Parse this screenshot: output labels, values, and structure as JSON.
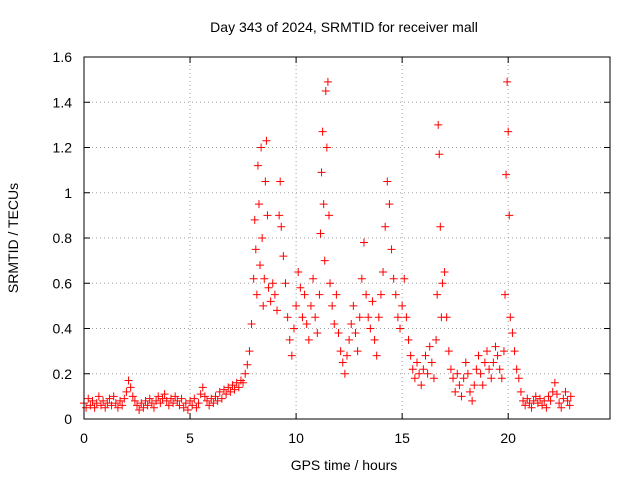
{
  "chart_data": {
    "type": "scatter",
    "title": "Day 343 of 2024, SRMTID for receiver mall",
    "xlabel": "GPS time / hours",
    "ylabel": "SRMTID / TECUs",
    "xlim": [
      0,
      24.8
    ],
    "ylim": [
      0,
      1.6
    ],
    "x_ticks": [
      0,
      5,
      10,
      15,
      20
    ],
    "y_ticks": [
      0,
      0.2,
      0.4,
      0.6,
      0.8,
      1,
      1.2,
      1.4,
      1.6
    ],
    "x_tick_labels": [
      "0",
      "5",
      "10",
      "15",
      "20"
    ],
    "y_tick_labels": [
      "0",
      "0.2",
      "0.4",
      "0.6",
      "0.8",
      "1",
      "1.2",
      "1.4",
      "1.6"
    ],
    "grid": true,
    "marker": "plus",
    "color": "#ff0000",
    "series": [
      {
        "name": "SRMTID",
        "points": [
          [
            0.0,
            0.07
          ],
          [
            0.1,
            0.05
          ],
          [
            0.2,
            0.09
          ],
          [
            0.3,
            0.06
          ],
          [
            0.4,
            0.08
          ],
          [
            0.5,
            0.05
          ],
          [
            0.6,
            0.07
          ],
          [
            0.7,
            0.1
          ],
          [
            0.8,
            0.06
          ],
          [
            0.9,
            0.08
          ],
          [
            1.0,
            0.05
          ],
          [
            1.1,
            0.07
          ],
          [
            1.2,
            0.09
          ],
          [
            1.3,
            0.06
          ],
          [
            1.4,
            0.1
          ],
          [
            1.5,
            0.07
          ],
          [
            1.6,
            0.05
          ],
          [
            1.7,
            0.08
          ],
          [
            1.8,
            0.06
          ],
          [
            1.9,
            0.09
          ],
          [
            2.0,
            0.12
          ],
          [
            2.1,
            0.17
          ],
          [
            2.2,
            0.14
          ],
          [
            2.3,
            0.1
          ],
          [
            2.4,
            0.08
          ],
          [
            2.5,
            0.06
          ],
          [
            2.6,
            0.04
          ],
          [
            2.7,
            0.07
          ],
          [
            2.8,
            0.05
          ],
          [
            2.9,
            0.08
          ],
          [
            3.0,
            0.06
          ],
          [
            3.1,
            0.09
          ],
          [
            3.2,
            0.07
          ],
          [
            3.3,
            0.05
          ],
          [
            3.4,
            0.08
          ],
          [
            3.5,
            0.1
          ],
          [
            3.6,
            0.07
          ],
          [
            3.7,
            0.09
          ],
          [
            3.8,
            0.11
          ],
          [
            3.9,
            0.08
          ],
          [
            4.0,
            0.06
          ],
          [
            4.1,
            0.09
          ],
          [
            4.2,
            0.07
          ],
          [
            4.3,
            0.1
          ],
          [
            4.4,
            0.08
          ],
          [
            4.5,
            0.06
          ],
          [
            4.6,
            0.09
          ],
          [
            4.7,
            0.05
          ],
          [
            4.8,
            0.07
          ],
          [
            4.9,
            0.04
          ],
          [
            5.0,
            0.08
          ],
          [
            5.1,
            0.06
          ],
          [
            5.2,
            0.09
          ],
          [
            5.3,
            0.05
          ],
          [
            5.4,
            0.07
          ],
          [
            5.5,
            0.11
          ],
          [
            5.6,
            0.14
          ],
          [
            5.7,
            0.1
          ],
          [
            5.8,
            0.08
          ],
          [
            5.9,
            0.06
          ],
          [
            6.0,
            0.09
          ],
          [
            6.1,
            0.07
          ],
          [
            6.2,
            0.1
          ],
          [
            6.3,
            0.08
          ],
          [
            6.4,
            0.12
          ],
          [
            6.5,
            0.09
          ],
          [
            6.6,
            0.13
          ],
          [
            6.7,
            0.11
          ],
          [
            6.8,
            0.14
          ],
          [
            6.9,
            0.12
          ],
          [
            7.0,
            0.15
          ],
          [
            7.1,
            0.13
          ],
          [
            7.2,
            0.16
          ],
          [
            7.3,
            0.14
          ],
          [
            7.4,
            0.17
          ],
          [
            7.5,
            0.16
          ],
          [
            7.6,
            0.2
          ],
          [
            7.7,
            0.24
          ],
          [
            7.8,
            0.3
          ],
          [
            7.9,
            0.42
          ],
          [
            8.0,
            0.62
          ],
          [
            8.05,
            0.88
          ],
          [
            8.1,
            0.75
          ],
          [
            8.15,
            0.55
          ],
          [
            8.2,
            1.12
          ],
          [
            8.25,
            0.95
          ],
          [
            8.3,
            0.68
          ],
          [
            8.35,
            1.2
          ],
          [
            8.4,
            0.8
          ],
          [
            8.45,
            0.5
          ],
          [
            8.5,
            0.62
          ],
          [
            8.55,
            1.05
          ],
          [
            8.6,
            1.23
          ],
          [
            8.65,
            0.9
          ],
          [
            8.7,
            0.58
          ],
          [
            8.8,
            0.52
          ],
          [
            8.9,
            0.6
          ],
          [
            9.0,
            0.55
          ],
          [
            9.1,
            0.48
          ],
          [
            9.2,
            0.9
          ],
          [
            9.25,
            1.05
          ],
          [
            9.3,
            0.85
          ],
          [
            9.4,
            0.72
          ],
          [
            9.5,
            0.6
          ],
          [
            9.6,
            0.45
          ],
          [
            9.7,
            0.35
          ],
          [
            9.8,
            0.28
          ],
          [
            9.9,
            0.4
          ],
          [
            10.0,
            0.5
          ],
          [
            10.1,
            0.65
          ],
          [
            10.2,
            0.58
          ],
          [
            10.3,
            0.45
          ],
          [
            10.4,
            0.55
          ],
          [
            10.5,
            0.42
          ],
          [
            10.6,
            0.35
          ],
          [
            10.7,
            0.5
          ],
          [
            10.8,
            0.62
          ],
          [
            10.9,
            0.45
          ],
          [
            11.0,
            0.38
          ],
          [
            11.1,
            0.55
          ],
          [
            11.15,
            0.82
          ],
          [
            11.2,
            1.09
          ],
          [
            11.25,
            1.27
          ],
          [
            11.3,
            0.95
          ],
          [
            11.35,
            0.7
          ],
          [
            11.4,
            1.45
          ],
          [
            11.45,
            1.2
          ],
          [
            11.5,
            1.49
          ],
          [
            11.55,
            0.9
          ],
          [
            11.6,
            0.6
          ],
          [
            11.7,
            0.5
          ],
          [
            11.8,
            0.42
          ],
          [
            11.9,
            0.55
          ],
          [
            12.0,
            0.38
          ],
          [
            12.1,
            0.3
          ],
          [
            12.2,
            0.25
          ],
          [
            12.3,
            0.2
          ],
          [
            12.4,
            0.28
          ],
          [
            12.5,
            0.35
          ],
          [
            12.6,
            0.42
          ],
          [
            12.7,
            0.5
          ],
          [
            12.8,
            0.38
          ],
          [
            12.9,
            0.3
          ],
          [
            13.0,
            0.45
          ],
          [
            13.1,
            0.62
          ],
          [
            13.2,
            0.78
          ],
          [
            13.3,
            0.55
          ],
          [
            13.4,
            0.45
          ],
          [
            13.5,
            0.4
          ],
          [
            13.6,
            0.52
          ],
          [
            13.7,
            0.35
          ],
          [
            13.8,
            0.28
          ],
          [
            13.9,
            0.45
          ],
          [
            14.0,
            0.55
          ],
          [
            14.1,
            0.65
          ],
          [
            14.2,
            0.85
          ],
          [
            14.3,
            1.05
          ],
          [
            14.4,
            0.95
          ],
          [
            14.5,
            0.75
          ],
          [
            14.6,
            0.62
          ],
          [
            14.7,
            0.55
          ],
          [
            14.8,
            0.45
          ],
          [
            14.9,
            0.4
          ],
          [
            15.0,
            0.5
          ],
          [
            15.1,
            0.62
          ],
          [
            15.2,
            0.45
          ],
          [
            15.3,
            0.35
          ],
          [
            15.4,
            0.28
          ],
          [
            15.5,
            0.22
          ],
          [
            15.6,
            0.18
          ],
          [
            15.7,
            0.25
          ],
          [
            15.8,
            0.2
          ],
          [
            15.9,
            0.15
          ],
          [
            16.0,
            0.22
          ],
          [
            16.1,
            0.28
          ],
          [
            16.2,
            0.2
          ],
          [
            16.3,
            0.32
          ],
          [
            16.4,
            0.25
          ],
          [
            16.5,
            0.18
          ],
          [
            16.6,
            0.35
          ],
          [
            16.65,
            0.55
          ],
          [
            16.7,
            1.3
          ],
          [
            16.75,
            1.17
          ],
          [
            16.8,
            0.85
          ],
          [
            16.85,
            0.45
          ],
          [
            16.9,
            0.6
          ],
          [
            17.0,
            0.65
          ],
          [
            17.1,
            0.45
          ],
          [
            17.2,
            0.3
          ],
          [
            17.3,
            0.22
          ],
          [
            17.4,
            0.18
          ],
          [
            17.5,
            0.12
          ],
          [
            17.6,
            0.2
          ],
          [
            17.7,
            0.15
          ],
          [
            17.8,
            0.1
          ],
          [
            17.9,
            0.18
          ],
          [
            18.0,
            0.25
          ],
          [
            18.1,
            0.2
          ],
          [
            18.2,
            0.12
          ],
          [
            18.3,
            0.08
          ],
          [
            18.4,
            0.15
          ],
          [
            18.5,
            0.22
          ],
          [
            18.6,
            0.28
          ],
          [
            18.7,
            0.2
          ],
          [
            18.8,
            0.15
          ],
          [
            18.9,
            0.25
          ],
          [
            19.0,
            0.3
          ],
          [
            19.1,
            0.22
          ],
          [
            19.2,
            0.18
          ],
          [
            19.3,
            0.25
          ],
          [
            19.4,
            0.32
          ],
          [
            19.5,
            0.28
          ],
          [
            19.6,
            0.22
          ],
          [
            19.7,
            0.18
          ],
          [
            19.8,
            0.3
          ],
          [
            19.85,
            0.55
          ],
          [
            19.9,
            1.08
          ],
          [
            19.95,
            1.49
          ],
          [
            20.0,
            1.27
          ],
          [
            20.05,
            0.9
          ],
          [
            20.1,
            0.45
          ],
          [
            20.2,
            0.38
          ],
          [
            20.3,
            0.3
          ],
          [
            20.4,
            0.22
          ],
          [
            20.5,
            0.18
          ],
          [
            20.6,
            0.12
          ],
          [
            20.7,
            0.08
          ],
          [
            20.8,
            0.06
          ],
          [
            20.9,
            0.09
          ],
          [
            21.0,
            0.07
          ],
          [
            21.1,
            0.05
          ],
          [
            21.2,
            0.08
          ],
          [
            21.3,
            0.1
          ],
          [
            21.4,
            0.07
          ],
          [
            21.5,
            0.09
          ],
          [
            21.6,
            0.06
          ],
          [
            21.7,
            0.08
          ],
          [
            21.8,
            0.05
          ],
          [
            21.9,
            0.1
          ],
          [
            22.0,
            0.08
          ],
          [
            22.1,
            0.12
          ],
          [
            22.2,
            0.16
          ],
          [
            22.3,
            0.11
          ],
          [
            22.4,
            0.07
          ],
          [
            22.5,
            0.05
          ],
          [
            22.6,
            0.09
          ],
          [
            22.7,
            0.12
          ],
          [
            22.8,
            0.08
          ],
          [
            22.9,
            0.06
          ],
          [
            22.95,
            0.1
          ]
        ]
      }
    ]
  }
}
